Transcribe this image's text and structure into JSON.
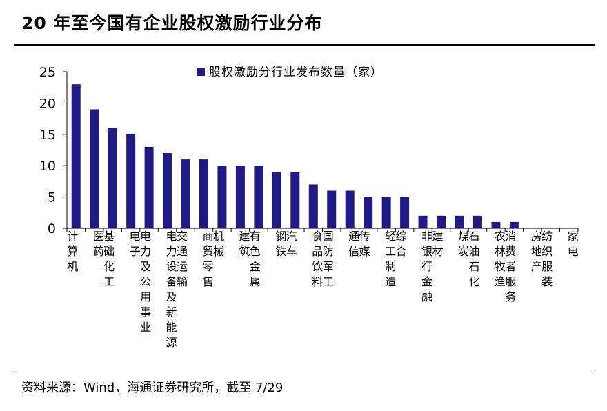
{
  "title": "20 年至今国有企业股权激励行业分布",
  "source": "资料来源：Wind，海通证券研究所，截至 7/29",
  "chart_data": {
    "type": "bar",
    "legend": "股权激励分行业发布数量（家）",
    "legend_position": "top-center",
    "grid": false,
    "ylim": [
      0,
      25
    ],
    "yticks": [
      0,
      5,
      10,
      15,
      20,
      25
    ],
    "bar_color": "#1f1a85",
    "categories": [
      "计算机",
      "医药",
      "基础化工",
      "电子",
      "电力及公用事业",
      "电力设备及新能源",
      "交通运输",
      "商贸零售",
      "机械",
      "建筑",
      "有色金属",
      "钢铁",
      "汽车",
      "食品饮料",
      "国防军工",
      "通信",
      "传媒",
      "轻工制造",
      "综合",
      "非银行金融",
      "建材",
      "煤炭",
      "石油石化",
      "农林牧渔",
      "消费者服务",
      "房地产",
      "纺织服装",
      "家电"
    ],
    "values": [
      23,
      19,
      16,
      15,
      13,
      12,
      11,
      11,
      10,
      10,
      10,
      9,
      9,
      7,
      6,
      6,
      5,
      5,
      5,
      2,
      2,
      2,
      2,
      1,
      1,
      0,
      0,
      0
    ]
  }
}
